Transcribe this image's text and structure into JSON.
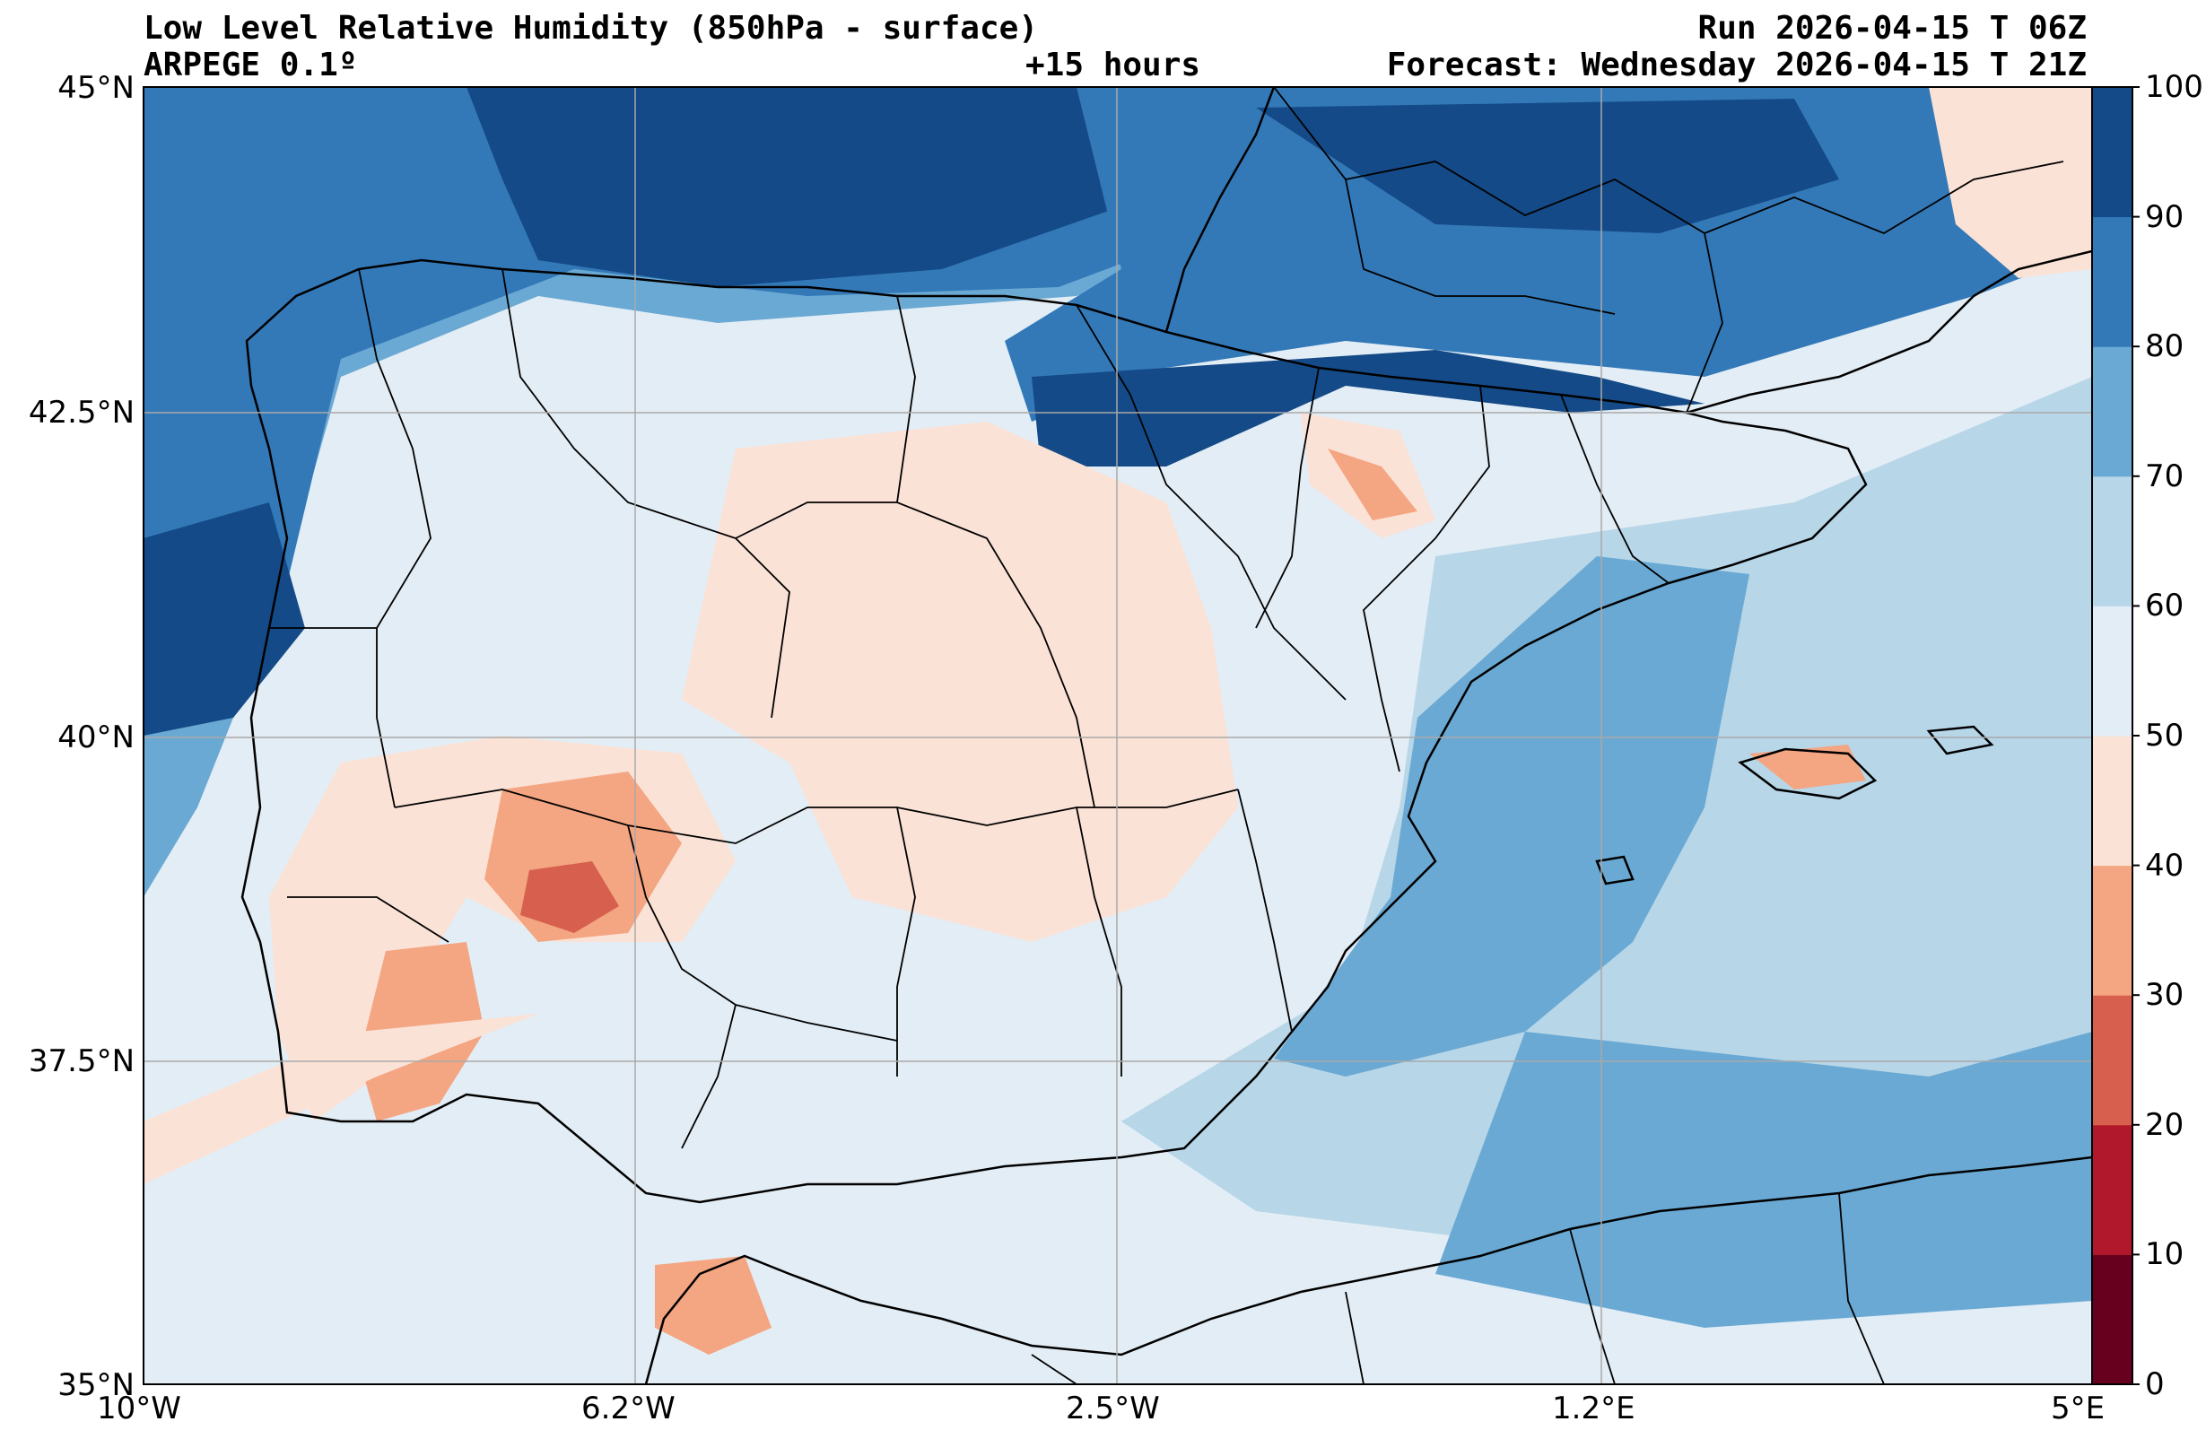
{
  "header": {
    "title": "Low Level Relative Humidity (850hPa - surface)",
    "model": "ARPEGE 0.1º",
    "lead_time": "+15 hours",
    "run": "Run 2026-04-15 T 06Z",
    "forecast": "Forecast: Wednesday 2026-04-15 T 21Z"
  },
  "map": {
    "lat_labels": [
      "45°N",
      "42.5°N",
      "40°N",
      "37.5°N",
      "35°N"
    ],
    "lon_labels": [
      "10°W",
      "6.2°W",
      "2.5°W",
      "1.2°E",
      "5°E"
    ],
    "extent": {
      "lon_min": -10,
      "lon_max": 5,
      "lat_min": 35,
      "lat_max": 45
    }
  },
  "colorbar": {
    "ticks": [
      "0",
      "10",
      "20",
      "30",
      "40",
      "50",
      "60",
      "70",
      "80",
      "90",
      "100"
    ],
    "colors": [
      "#67001f",
      "#b2182b",
      "#d6604d",
      "#f4a582",
      "#fbe2d6",
      "#e3edf5",
      "#b7d6e8",
      "#6aa9d3",
      "#3379b8",
      "#144a87"
    ]
  },
  "colors": {
    "ocean_background": "#e3edf5",
    "land_border": "#000000",
    "grid": "#a9a9a9"
  }
}
